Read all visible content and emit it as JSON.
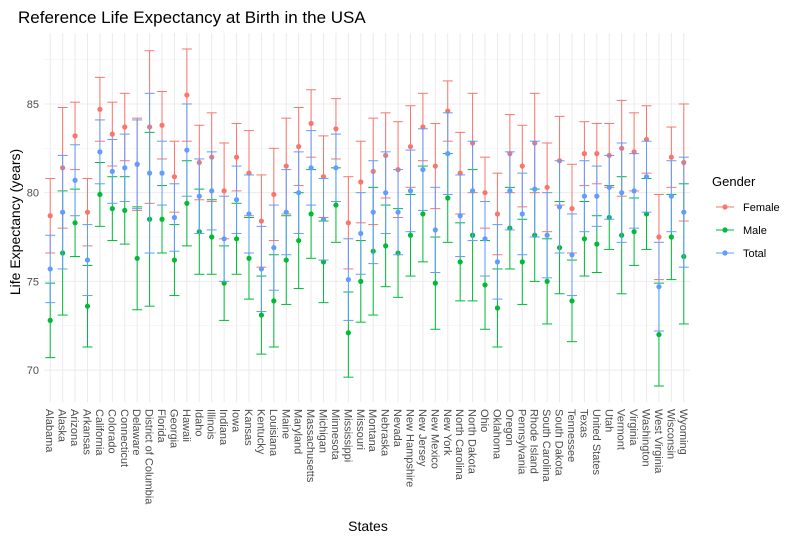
{
  "chart_data": {
    "type": "scatter",
    "title": "Reference Life Expectancy at Birth in the USA",
    "xlabel": "States",
    "ylabel": "Life Expectancy (years)",
    "ylim": [
      68.2,
      89.0
    ],
    "yticks": [
      70,
      75,
      80,
      85
    ],
    "grid": true,
    "legend_title": "Gender",
    "legend_position": "right",
    "categories": [
      "Alabama",
      "Alaska",
      "Arizona",
      "Arkansas",
      "California",
      "Colorado",
      "Connecticut",
      "Delaware",
      "District of Columbia",
      "Florida",
      "Georgia",
      "Hawaii",
      "Idaho",
      "Illinois",
      "Indiana",
      "Iowa",
      "Kansas",
      "Kentucky",
      "Louisiana",
      "Maine",
      "Maryland",
      "Massachusetts",
      "Michigan",
      "Minnesota",
      "Mississippi",
      "Missouri",
      "Montana",
      "Nebraska",
      "Nevada",
      "New Hampshire",
      "New Jersey",
      "New Mexico",
      "New York",
      "North Carolina",
      "North Dakota",
      "Ohio",
      "Oklahoma",
      "Oregon",
      "Pennsylvania",
      "Rhode Island",
      "South Carolina",
      "South Dakota",
      "Tennessee",
      "Texas",
      "United States",
      "Utah",
      "Vermont",
      "Virginia",
      "Washington",
      "West Virginia",
      "Wisconsin",
      "Wyoming"
    ],
    "series": [
      {
        "name": "Female",
        "color": "#F8766D",
        "values": [
          78.7,
          81.4,
          83.2,
          78.9,
          84.7,
          83.3,
          83.7,
          81.6,
          83.7,
          83.8,
          80.9,
          85.5,
          81.7,
          82.0,
          80.1,
          82.0,
          81.1,
          78.4,
          79.9,
          81.5,
          82.6,
          83.9,
          80.9,
          83.6,
          78.3,
          80.6,
          81.2,
          82.1,
          81.3,
          82.6,
          83.7,
          81.5,
          84.6,
          81.1,
          82.8,
          80.0,
          78.8,
          82.2,
          81.5,
          82.8,
          80.3,
          81.8,
          79.1,
          82.2,
          82.2,
          82.1,
          82.5,
          82.3,
          83.0,
          77.5,
          82.0,
          81.7
        ],
        "upper": [
          80.8,
          84.8,
          85.1,
          80.8,
          86.5,
          85.1,
          85.6,
          84.2,
          88.0,
          85.7,
          82.9,
          88.1,
          83.8,
          84.5,
          82.8,
          83.9,
          83.5,
          81.0,
          82.5,
          84.2,
          84.8,
          85.8,
          83.2,
          85.3,
          80.9,
          82.9,
          84.2,
          84.5,
          84.0,
          84.9,
          85.6,
          83.9,
          86.3,
          83.4,
          85.6,
          82.0,
          81.1,
          84.4,
          83.8,
          85.6,
          82.8,
          84.3,
          81.6,
          84.0,
          83.9,
          83.9,
          85.2,
          84.5,
          84.9,
          79.9,
          83.7,
          85.0
        ],
        "lower": [
          76.6,
          78.0,
          81.3,
          77.0,
          82.9,
          81.5,
          81.8,
          79.0,
          79.4,
          81.9,
          78.9,
          82.9,
          79.6,
          79.5,
          77.4,
          80.1,
          78.7,
          75.8,
          77.3,
          78.8,
          80.4,
          82.0,
          78.6,
          81.9,
          75.7,
          78.3,
          78.2,
          79.7,
          78.6,
          80.3,
          81.8,
          79.1,
          82.9,
          78.8,
          80.0,
          78.0,
          76.5,
          80.0,
          79.2,
          80.0,
          77.8,
          79.3,
          76.6,
          80.4,
          80.5,
          80.3,
          79.8,
          80.1,
          81.1,
          75.1,
          80.3,
          78.4
        ]
      },
      {
        "name": "Male",
        "color": "#00BA38",
        "values": [
          72.8,
          76.6,
          78.3,
          73.6,
          79.9,
          79.1,
          79.0,
          76.3,
          78.5,
          78.5,
          76.2,
          79.4,
          77.8,
          77.5,
          74.9,
          77.4,
          76.3,
          73.1,
          73.9,
          76.2,
          77.3,
          78.8,
          76.1,
          79.3,
          72.1,
          75.0,
          76.7,
          77.0,
          76.6,
          77.6,
          78.8,
          74.9,
          79.7,
          76.1,
          77.6,
          74.8,
          73.5,
          78.0,
          76.1,
          77.6,
          75.0,
          76.9,
          73.9,
          77.4,
          77.1,
          78.6,
          77.6,
          77.8,
          78.8,
          72.0,
          77.5,
          76.4
        ],
        "upper": [
          74.9,
          80.1,
          80.2,
          75.9,
          81.7,
          80.9,
          80.9,
          79.2,
          83.4,
          80.4,
          78.2,
          81.8,
          80.2,
          79.6,
          77.0,
          79.4,
          78.6,
          75.3,
          76.5,
          78.7,
          80.0,
          81.3,
          78.4,
          81.4,
          74.4,
          77.3,
          80.3,
          79.3,
          79.1,
          79.9,
          81.5,
          77.5,
          82.2,
          78.3,
          81.3,
          77.3,
          75.7,
          80.3,
          78.5,
          80.2,
          77.4,
          79.5,
          76.2,
          79.5,
          78.7,
          80.4,
          80.9,
          79.7,
          80.8,
          74.9,
          79.9,
          80.5
        ],
        "lower": [
          70.7,
          73.1,
          76.4,
          71.3,
          78.1,
          77.3,
          77.1,
          73.4,
          73.6,
          76.6,
          74.2,
          77.0,
          75.4,
          75.4,
          72.8,
          75.4,
          74.0,
          70.9,
          71.3,
          73.7,
          74.6,
          76.3,
          73.8,
          77.2,
          69.6,
          72.7,
          73.1,
          74.7,
          74.1,
          75.3,
          76.1,
          72.3,
          77.2,
          73.9,
          73.9,
          72.3,
          71.3,
          75.7,
          73.7,
          75.0,
          72.6,
          74.3,
          71.6,
          75.3,
          75.5,
          76.8,
          74.3,
          75.9,
          76.8,
          69.1,
          75.1,
          72.6
        ]
      },
      {
        "name": "Total",
        "color": "#619CFF",
        "values": [
          75.7,
          78.9,
          80.7,
          76.2,
          82.3,
          81.2,
          81.4,
          81.6,
          81.1,
          81.1,
          78.6,
          82.4,
          79.8,
          80.1,
          77.4,
          79.6,
          78.8,
          75.7,
          76.9,
          78.9,
          80.0,
          81.4,
          78.5,
          81.4,
          75.1,
          77.7,
          78.9,
          80.0,
          78.9,
          80.1,
          81.3,
          77.9,
          82.2,
          78.7,
          80.1,
          77.4,
          76.1,
          80.1,
          78.8,
          80.2,
          77.6,
          79.2,
          76.5,
          79.8,
          79.8,
          80.3,
          80.0,
          80.1,
          80.9,
          74.7,
          79.8,
          78.9
        ],
        "upper": [
          77.6,
          82.1,
          82.7,
          78.2,
          84.1,
          83.0,
          83.3,
          84.1,
          85.6,
          82.9,
          80.5,
          85.0,
          81.9,
          82.3,
          79.8,
          81.5,
          81.0,
          78.1,
          79.3,
          81.3,
          82.3,
          83.5,
          80.8,
          83.3,
          77.4,
          80.0,
          81.8,
          82.3,
          81.3,
          82.4,
          83.6,
          80.3,
          84.5,
          81.0,
          82.9,
          79.5,
          78.2,
          82.3,
          81.1,
          82.9,
          80.0,
          81.8,
          78.8,
          81.8,
          81.5,
          82.1,
          82.8,
          82.2,
          82.9,
          77.2,
          81.8,
          82.0
        ],
        "lower": [
          73.8,
          75.7,
          78.7,
          74.2,
          80.5,
          79.4,
          79.5,
          79.1,
          76.6,
          79.3,
          76.7,
          79.8,
          77.7,
          77.9,
          75.0,
          77.7,
          76.6,
          73.3,
          74.5,
          76.5,
          77.7,
          79.3,
          76.2,
          79.5,
          72.8,
          75.4,
          76.0,
          77.7,
          76.5,
          77.8,
          79.0,
          75.5,
          79.9,
          76.4,
          77.3,
          75.3,
          74.0,
          77.9,
          76.5,
          77.5,
          75.2,
          76.6,
          74.2,
          77.8,
          78.1,
          78.5,
          77.2,
          78.0,
          78.9,
          72.2,
          77.8,
          75.8
        ]
      }
    ]
  }
}
